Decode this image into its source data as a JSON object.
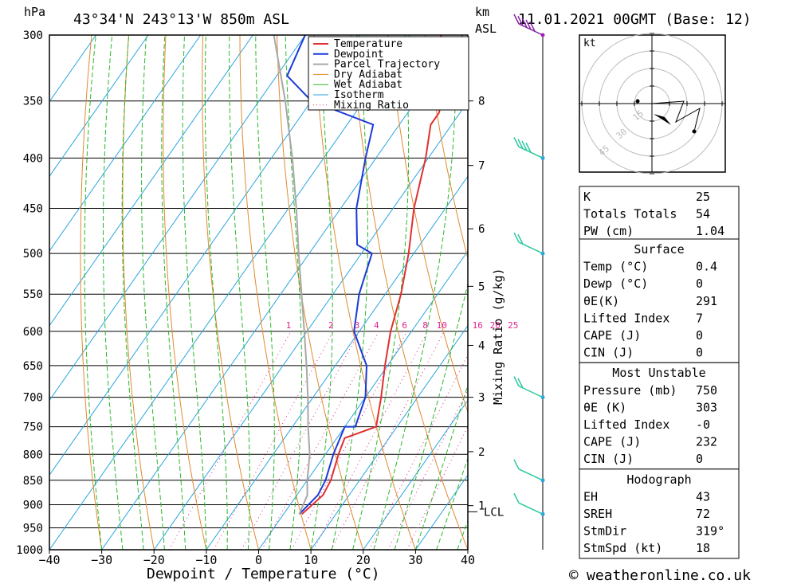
{
  "header": {
    "pressure_unit": "hPa",
    "location": "43°34'N  243°13'W  850m  ASL",
    "km_label": "km",
    "asl_label": "ASL",
    "datetime": "11.01.2021  00GMT  (Base: 12)"
  },
  "chart_data": {
    "type": "line",
    "xlabel": "Dewpoint / Temperature (°C)",
    "ylabel": "hPa",
    "right_axis_label": "Mixing Ratio (g/kg)",
    "xlim": [
      -40,
      40
    ],
    "ylim": [
      1000,
      300
    ],
    "x_ticks": [
      -40,
      -30,
      -20,
      -10,
      0,
      10,
      20,
      30,
      40
    ],
    "pressure_levels": [
      300,
      350,
      400,
      450,
      500,
      550,
      600,
      650,
      700,
      750,
      800,
      850,
      900,
      950,
      1000
    ],
    "km_ticks": [
      {
        "label": "8",
        "p": 350
      },
      {
        "label": "7",
        "p": 407
      },
      {
        "label": "6",
        "p": 472
      },
      {
        "label": "5",
        "p": 540
      },
      {
        "label": "4",
        "p": 620
      },
      {
        "label": "3",
        "p": 700
      },
      {
        "label": "2",
        "p": 795
      },
      {
        "label": "1",
        "p": 902
      }
    ],
    "lcl_label": "LCL",
    "lcl_pressure": 915,
    "mixing_ratio_labels": [
      "1",
      "2",
      "3",
      "4",
      "6",
      "8",
      "10",
      "16",
      "20",
      "25"
    ],
    "mixing_ratio_values": [
      1,
      2,
      3,
      4,
      6,
      8,
      10,
      16,
      20,
      25
    ],
    "legend": [
      "Temperature",
      "Dewpoint",
      "Parcel Trajectory",
      "Dry Adiabat",
      "Wet Adiabat",
      "Isotherm",
      "Mixing Ratio"
    ],
    "colors": {
      "temperature": "#e03030",
      "dewpoint": "#1a3ad8",
      "parcel": "#a8a8a8",
      "dry_adiabat": "#e08a30",
      "wet_adiabat": "#2ab82a",
      "isotherm": "#2aa6e0",
      "mixing_ratio": "#e02090",
      "wind": "#28c8a0"
    },
    "series": [
      {
        "name": "Temperature",
        "points": [
          [
            3.5,
            920
          ],
          [
            5,
            880
          ],
          [
            4.5,
            850
          ],
          [
            2.5,
            800
          ],
          [
            1.5,
            770
          ],
          [
            6,
            750
          ],
          [
            3,
            700
          ],
          [
            -0.5,
            650
          ],
          [
            -4,
            600
          ],
          [
            -7,
            550
          ],
          [
            -11,
            500
          ],
          [
            -16,
            450
          ],
          [
            -20.5,
            400
          ],
          [
            -24,
            370
          ],
          [
            -24,
            360
          ],
          [
            -25,
            350
          ],
          [
            -30,
            330
          ],
          [
            -34,
            300
          ]
        ]
      },
      {
        "name": "Dewpoint",
        "points": [
          [
            3,
            920
          ],
          [
            4,
            880
          ],
          [
            3.5,
            850
          ],
          [
            1.5,
            800
          ],
          [
            0,
            750
          ],
          [
            2,
            750
          ],
          [
            0,
            700
          ],
          [
            -4,
            650
          ],
          [
            -11,
            600
          ],
          [
            -15,
            550
          ],
          [
            -18,
            500
          ],
          [
            -22,
            490
          ],
          [
            -27,
            450
          ],
          [
            -32,
            400
          ],
          [
            -35,
            370
          ],
          [
            -50,
            350
          ],
          [
            -58,
            330
          ],
          [
            -60,
            300
          ]
        ]
      },
      {
        "name": "Parcel Trajectory",
        "points": [
          [
            3,
            920
          ],
          [
            2,
            880
          ],
          [
            0,
            850
          ],
          [
            -3,
            800
          ],
          [
            -7,
            750
          ],
          [
            -11,
            700
          ],
          [
            -15.5,
            650
          ],
          [
            -20.5,
            600
          ],
          [
            -26,
            550
          ],
          [
            -32,
            500
          ],
          [
            -38.5,
            450
          ],
          [
            -46,
            400
          ],
          [
            -55,
            350
          ],
          [
            -66,
            300
          ]
        ]
      }
    ]
  },
  "wind_barbs": [
    {
      "p": 300,
      "kt": 45
    },
    {
      "p": 400,
      "kt": 35
    },
    {
      "p": 500,
      "kt": 20
    },
    {
      "p": 700,
      "kt": 15
    },
    {
      "p": 850,
      "kt": 10
    },
    {
      "p": 920,
      "kt": 10
    }
  ],
  "hodograph": {
    "unit": "kt",
    "ring_labels": [
      "15",
      "30",
      "45"
    ]
  },
  "indices": {
    "top": [
      {
        "label": "K",
        "value": "25"
      },
      {
        "label": "Totals Totals",
        "value": "54"
      },
      {
        "label": "PW (cm)",
        "value": "1.04"
      }
    ],
    "surface": {
      "title": "Surface",
      "rows": [
        {
          "label": "Temp (°C)",
          "value": "0.4"
        },
        {
          "label": "Dewp (°C)",
          "value": "0"
        },
        {
          "label": "θE(K)",
          "value": "291"
        },
        {
          "label": "Lifted Index",
          "value": "7"
        },
        {
          "label": "CAPE (J)",
          "value": "0"
        },
        {
          "label": "CIN (J)",
          "value": "0"
        }
      ]
    },
    "most_unstable": {
      "title": "Most Unstable",
      "rows": [
        {
          "label": "Pressure (mb)",
          "value": "750"
        },
        {
          "label": "θE (K)",
          "value": "303"
        },
        {
          "label": "Lifted Index",
          "value": "-0"
        },
        {
          "label": "CAPE (J)",
          "value": "232"
        },
        {
          "label": "CIN (J)",
          "value": "0"
        }
      ]
    },
    "hodograph": {
      "title": "Hodograph",
      "rows": [
        {
          "label": "EH",
          "value": "43"
        },
        {
          "label": "SREH",
          "value": "72"
        },
        {
          "label": "StmDir",
          "value": "319°"
        },
        {
          "label": "StmSpd (kt)",
          "value": "18"
        }
      ]
    }
  },
  "footer": {
    "copyright_symbol": "©",
    "site": "weatheronline.co.uk"
  }
}
